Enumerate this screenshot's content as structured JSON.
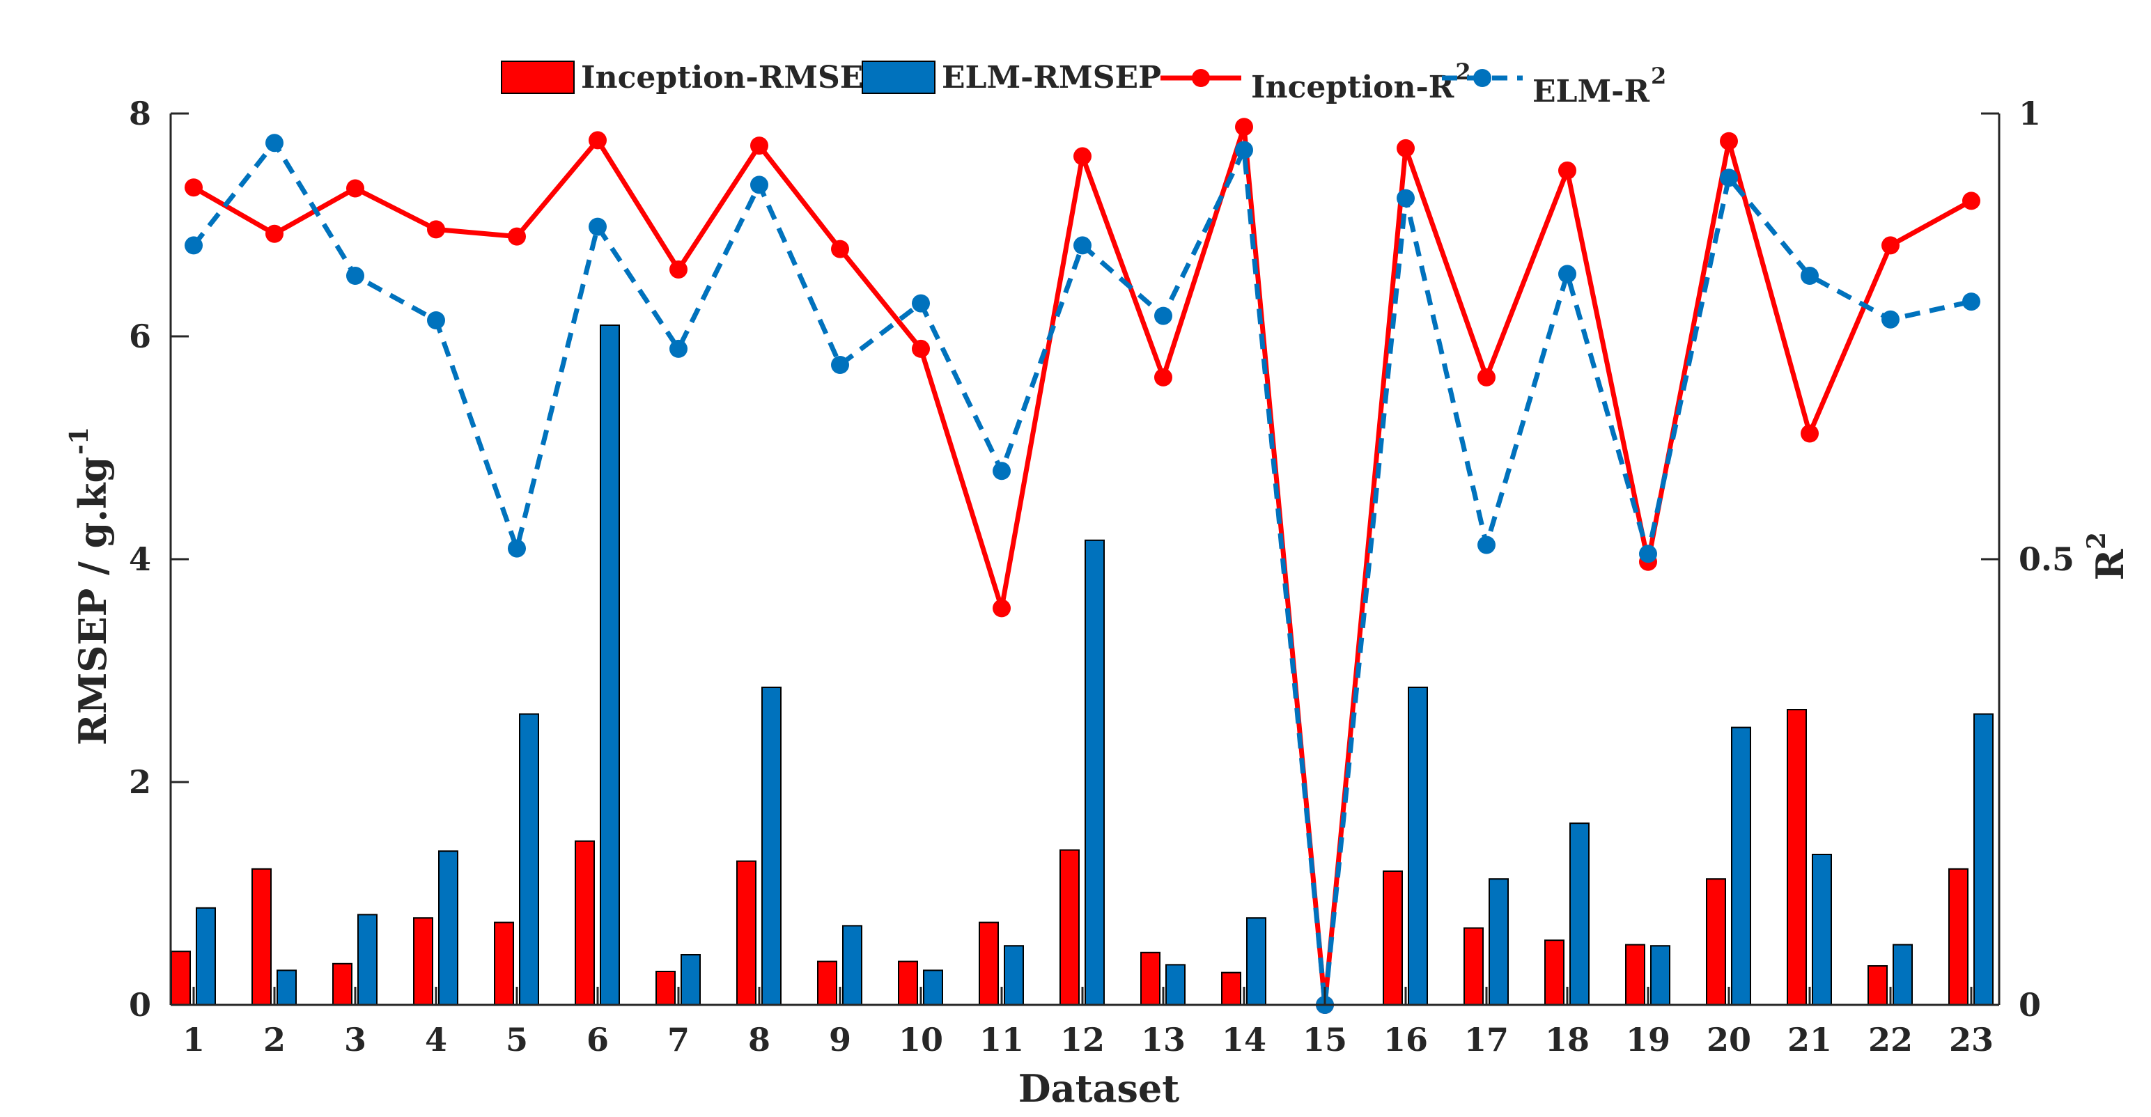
{
  "chart_data": {
    "type": "bar+line",
    "categories": [
      "1",
      "2",
      "3",
      "4",
      "5",
      "6",
      "7",
      "8",
      "9",
      "10",
      "11",
      "12",
      "13",
      "14",
      "15",
      "16",
      "17",
      "18",
      "19",
      "20",
      "21",
      "22",
      "23"
    ],
    "xlabel": "Dataset",
    "ylabel_left": "RMSEP / g.kg",
    "ylabel_left_sup": "-1",
    "ylabel_right": "R",
    "ylabel_right_sup": "2",
    "ylim_left": [
      0,
      8
    ],
    "yticks_left": [
      "0",
      "2",
      "4",
      "6",
      "8"
    ],
    "ylim_right": [
      0,
      1
    ],
    "yticks_right": [
      "0",
      "0.5",
      "1"
    ],
    "grid": false,
    "legend_position": "top",
    "bars": [
      {
        "name": "Inception-RMSEP",
        "color": "#ff0000",
        "values": [
          0.48,
          1.22,
          0.37,
          0.78,
          0.74,
          1.47,
          0.3,
          1.29,
          0.39,
          0.39,
          0.74,
          1.39,
          0.47,
          0.29,
          0.0,
          1.2,
          0.69,
          0.58,
          0.54,
          1.13,
          2.65,
          0.35,
          1.22
        ]
      },
      {
        "name": "ELM-RMSEP",
        "color": "#0072bd",
        "values": [
          0.87,
          0.31,
          0.81,
          1.38,
          2.61,
          6.1,
          0.45,
          2.85,
          0.71,
          0.31,
          0.53,
          4.17,
          0.36,
          0.78,
          0.0,
          2.85,
          1.13,
          1.63,
          0.53,
          2.49,
          1.35,
          0.54,
          2.61
        ]
      }
    ],
    "lines": [
      {
        "name": "Inception-R",
        "sup": "2",
        "color": "#ff0000",
        "style": "solid",
        "values": [
          0.917,
          0.865,
          0.916,
          0.87,
          0.862,
          0.97,
          0.825,
          0.964,
          0.848,
          0.736,
          0.445,
          0.952,
          0.704,
          0.985,
          0.0,
          0.961,
          0.704,
          0.936,
          0.497,
          0.969,
          0.641,
          0.852,
          0.902
        ]
      },
      {
        "name": "ELM-R",
        "sup": "2",
        "color": "#0072bd",
        "style": "dashed",
        "values": [
          0.852,
          0.967,
          0.818,
          0.768,
          0.512,
          0.873,
          0.736,
          0.92,
          0.718,
          0.787,
          0.599,
          0.852,
          0.773,
          0.959,
          0.0,
          0.905,
          0.516,
          0.82,
          0.506,
          0.928,
          0.818,
          0.769,
          0.789
        ]
      }
    ]
  }
}
